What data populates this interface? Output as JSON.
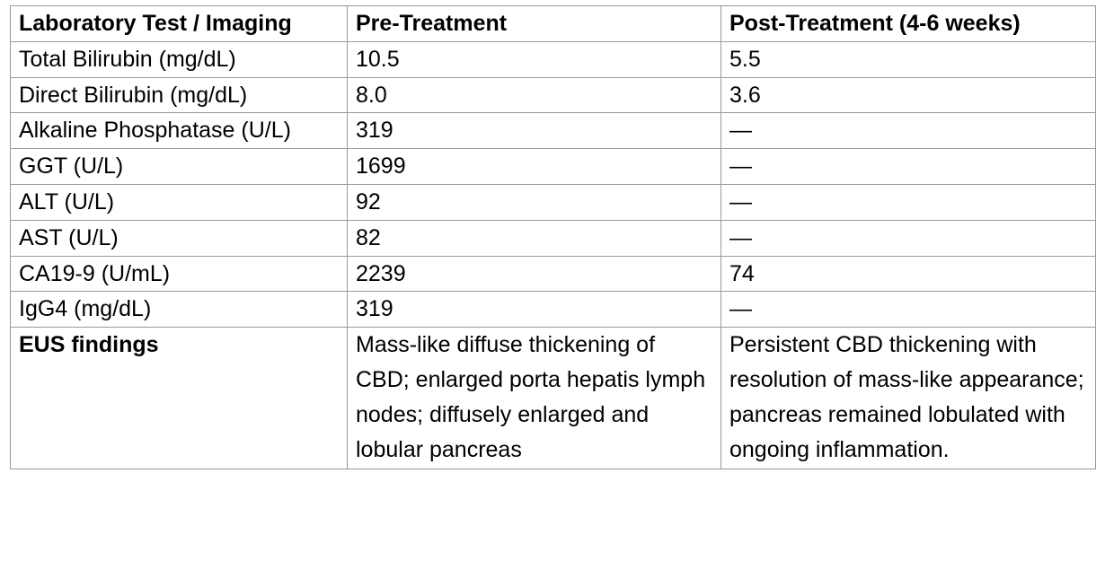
{
  "table": {
    "headers": [
      "Laboratory Test / Imaging",
      "Pre-Treatment",
      "Post-Treatment (4-6 weeks)"
    ],
    "rows": [
      {
        "test": "Total Bilirubin (mg/dL)",
        "pre": "10.5",
        "post": "5.5"
      },
      {
        "test": "Direct Bilirubin (mg/dL)",
        "pre": "8.0",
        "post": "3.6"
      },
      {
        "test": "Alkaline Phosphatase (U/L)",
        "pre": "319",
        "post": "—"
      },
      {
        "test": "GGT (U/L)",
        "pre": "1699",
        "post": "—"
      },
      {
        "test": "ALT (U/L)",
        "pre": "92",
        "post": "—"
      },
      {
        "test": "AST (U/L)",
        "pre": "82",
        "post": "—"
      },
      {
        "test": "CA19-9 (U/mL)",
        "pre": "2239",
        "post": "74"
      },
      {
        "test": "IgG4 (mg/dL)",
        "pre": "319",
        "post": "—"
      },
      {
        "test": "EUS findings",
        "pre": "Mass-like diffuse thickening of CBD; enlarged porta hepatis lymph nodes; diffusely enlarged and lobular pancreas",
        "post": "Persistent CBD thickening with resolution of mass-like appearance; pancreas remained lobulated with ongoing inflammation."
      }
    ]
  }
}
